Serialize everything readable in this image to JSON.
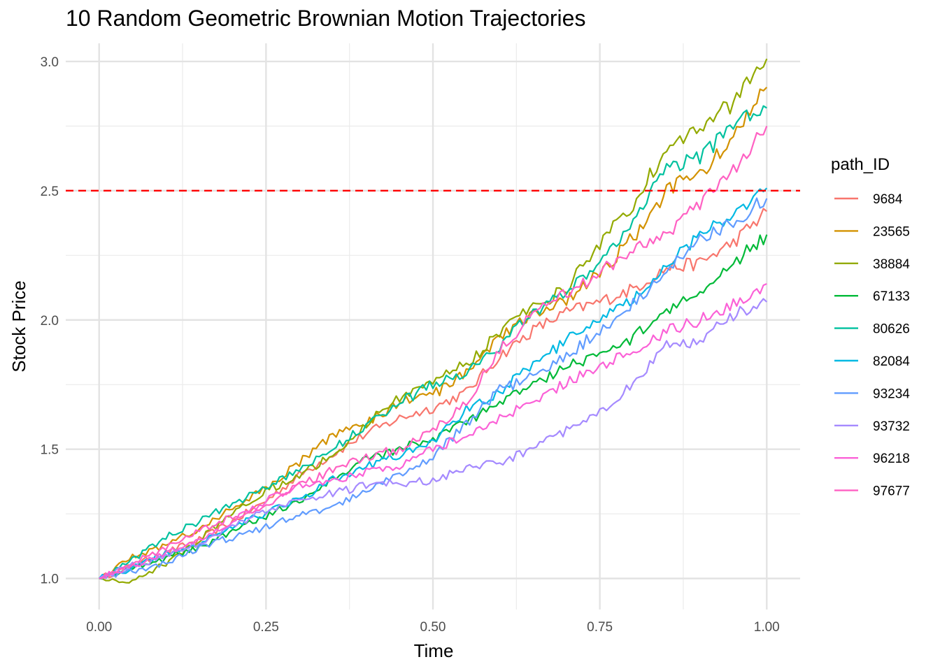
{
  "chart_data": {
    "type": "line",
    "title": "10 Random Geometric Brownian Motion Trajectories",
    "xlabel": "Time",
    "ylabel": "Stock Price",
    "xlim": [
      -0.05,
      1.05
    ],
    "ylim": [
      0.88,
      3.07
    ],
    "x_ticks": [
      0,
      0.25,
      0.5,
      0.75,
      1
    ],
    "x_tick_labels": [
      "0.00",
      "0.25",
      "0.50",
      "0.75",
      "1.00"
    ],
    "y_ticks": [
      1,
      1.5,
      2,
      2.5,
      3
    ],
    "y_tick_labels": [
      "1.0",
      "1.5",
      "2.0",
      "2.5",
      "3.0"
    ],
    "grid": true,
    "legend": {
      "title": "path_ID",
      "position": "right"
    },
    "reference_line": {
      "y": 2.5,
      "color": "#ff0000",
      "style": "dashed"
    },
    "x": [
      0,
      0.05,
      0.1,
      0.15,
      0.2,
      0.25,
      0.3,
      0.35,
      0.4,
      0.45,
      0.5,
      0.55,
      0.6,
      0.65,
      0.7,
      0.75,
      0.8,
      0.85,
      0.9,
      0.95,
      1.0
    ],
    "series": [
      {
        "name": "9684",
        "color": "#F8766D",
        "values": [
          1.0,
          1.05,
          1.1,
          1.15,
          1.22,
          1.3,
          1.4,
          1.48,
          1.56,
          1.62,
          1.66,
          1.72,
          1.86,
          1.96,
          2.03,
          2.07,
          2.12,
          2.2,
          2.22,
          2.3,
          2.42
        ]
      },
      {
        "name": "23565",
        "color": "#D39200",
        "values": [
          1.0,
          1.08,
          1.13,
          1.19,
          1.27,
          1.35,
          1.45,
          1.55,
          1.6,
          1.68,
          1.71,
          1.8,
          1.93,
          2.02,
          2.08,
          2.18,
          2.32,
          2.5,
          2.57,
          2.7,
          2.9
        ]
      },
      {
        "name": "38884",
        "color": "#93AA00",
        "values": [
          1.0,
          0.99,
          1.06,
          1.15,
          1.26,
          1.34,
          1.4,
          1.48,
          1.6,
          1.7,
          1.77,
          1.83,
          1.95,
          2.05,
          2.12,
          2.3,
          2.45,
          2.67,
          2.74,
          2.84,
          3.01
        ]
      },
      {
        "name": "67133",
        "color": "#00BA38",
        "values": [
          1.0,
          1.04,
          1.08,
          1.12,
          1.18,
          1.24,
          1.3,
          1.38,
          1.46,
          1.5,
          1.54,
          1.6,
          1.68,
          1.75,
          1.82,
          1.86,
          1.93,
          2.04,
          2.12,
          2.22,
          2.33
        ]
      },
      {
        "name": "80626",
        "color": "#00C19F",
        "values": [
          1.0,
          1.07,
          1.16,
          1.22,
          1.29,
          1.35,
          1.42,
          1.5,
          1.59,
          1.68,
          1.75,
          1.8,
          1.9,
          2.03,
          2.1,
          2.22,
          2.39,
          2.58,
          2.63,
          2.75,
          2.82
        ]
      },
      {
        "name": "82084",
        "color": "#00B9E3",
        "values": [
          1.0,
          1.04,
          1.1,
          1.14,
          1.2,
          1.25,
          1.31,
          1.38,
          1.43,
          1.48,
          1.53,
          1.65,
          1.72,
          1.83,
          1.92,
          2.0,
          2.08,
          2.22,
          2.32,
          2.42,
          2.51
        ]
      },
      {
        "name": "93234",
        "color": "#619CFF",
        "values": [
          1.0,
          1.03,
          1.06,
          1.12,
          1.16,
          1.2,
          1.24,
          1.28,
          1.34,
          1.4,
          1.47,
          1.6,
          1.73,
          1.78,
          1.86,
          1.96,
          2.06,
          2.18,
          2.32,
          2.38,
          2.47
        ]
      },
      {
        "name": "93732",
        "color": "#A58AFF",
        "values": [
          1.0,
          1.05,
          1.08,
          1.14,
          1.2,
          1.26,
          1.3,
          1.33,
          1.36,
          1.37,
          1.38,
          1.43,
          1.45,
          1.5,
          1.57,
          1.64,
          1.75,
          1.9,
          1.92,
          2.02,
          2.07
        ]
      },
      {
        "name": "96218",
        "color": "#FB61D7",
        "values": [
          1.0,
          1.05,
          1.1,
          1.14,
          1.22,
          1.3,
          1.36,
          1.38,
          1.41,
          1.44,
          1.5,
          1.55,
          1.62,
          1.68,
          1.76,
          1.82,
          1.88,
          1.96,
          2.0,
          2.06,
          2.14
        ]
      },
      {
        "name": "97677",
        "color": "#FF61C3",
        "values": [
          1.0,
          1.06,
          1.12,
          1.18,
          1.24,
          1.28,
          1.36,
          1.42,
          1.47,
          1.5,
          1.57,
          1.68,
          1.88,
          2.03,
          2.1,
          2.18,
          2.28,
          2.33,
          2.45,
          2.58,
          2.75
        ]
      }
    ]
  }
}
